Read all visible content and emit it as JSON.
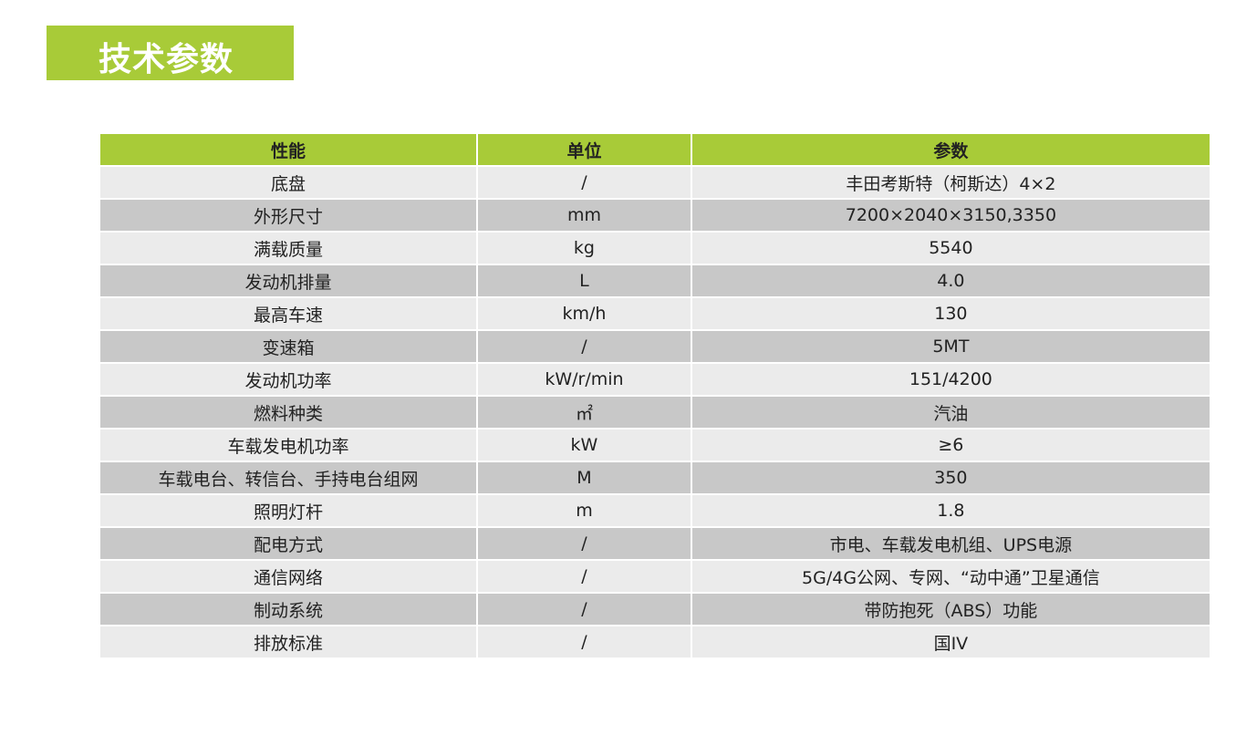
{
  "title": "技术参数",
  "colors": {
    "accent": "#a8cb38",
    "row_light": "#ebebeb",
    "row_dark": "#c8c8c8"
  },
  "table": {
    "headers": [
      "性能",
      "单位",
      "参数"
    ],
    "rows": [
      [
        "底盘",
        "/",
        "丰田考斯特（柯斯达）4×2"
      ],
      [
        "外形尺寸",
        "mm",
        "7200×2040×3150,3350"
      ],
      [
        "满载质量",
        "kg",
        "5540"
      ],
      [
        "发动机排量",
        "L",
        "4.0"
      ],
      [
        "最高车速",
        "km/h",
        "130"
      ],
      [
        "变速箱",
        "/",
        "5MT"
      ],
      [
        "发动机功率",
        "kW/r/min",
        "151/4200"
      ],
      [
        "燃料种类",
        "㎡",
        "汽油"
      ],
      [
        "车载发电机功率",
        "kW",
        "≥6"
      ],
      [
        "车载电台、转信台、手持电台组网",
        "M",
        "350"
      ],
      [
        "照明灯杆",
        "m",
        "1.8"
      ],
      [
        "配电方式",
        "/",
        "市电、车载发电机组、UPS电源"
      ],
      [
        "通信网络",
        "/",
        "5G/4G公网、专网、“动中通”卫星通信"
      ],
      [
        "制动系统",
        "/",
        "带防抱死（ABS）功能"
      ],
      [
        "排放标准",
        "/",
        "国IV"
      ]
    ]
  }
}
